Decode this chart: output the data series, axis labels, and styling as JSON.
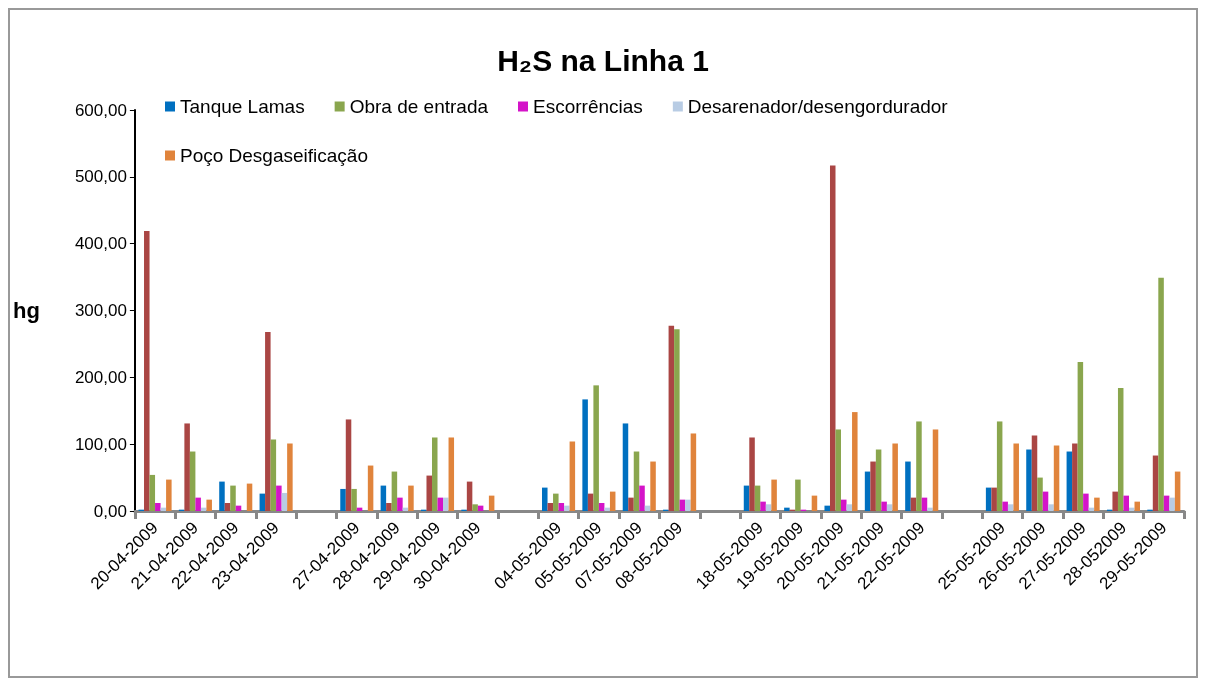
{
  "chart_data": {
    "type": "bar",
    "title": "H₂S na Linha 1",
    "ylabel": "hg",
    "categories": [
      "20-04-2009",
      "21-04-2009",
      "22-04-2009",
      "23-04-2009",
      null,
      "27-04-2009",
      "28-04-2009",
      "29-04-2009",
      "30-04-2009",
      null,
      "04-05-2009",
      "05-05-2009",
      "07-05-2009",
      "08-05-2009",
      null,
      "18-05-2009",
      "19-05-2009",
      "20-05-2009",
      "21-05-2009",
      "22-05-2009",
      null,
      "25-05-2009",
      "26-05-2009",
      "27-05-2009",
      "28-052009",
      "29-05-2009"
    ],
    "series": [
      {
        "name": "Tanque Lamas",
        "color": "#0070c0",
        "values": [
          2,
          2,
          44,
          26,
          null,
          33,
          38,
          2,
          2,
          null,
          35,
          167,
          131,
          2,
          null,
          38,
          5,
          8,
          59,
          74,
          null,
          35,
          92,
          89,
          2,
          2
        ]
      },
      {
        "color": "#aa4644",
        "values": [
          419,
          131,
          12,
          268,
          null,
          137,
          12,
          53,
          44,
          null,
          12,
          26,
          20,
          277,
          null,
          110,
          2,
          517,
          74,
          20,
          null,
          35,
          113,
          101,
          29,
          83
        ]
      },
      {
        "name": "Obra de entrada",
        "color": "#8aa64e",
        "values": [
          54,
          89,
          38,
          107,
          null,
          33,
          59,
          110,
          10,
          null,
          26,
          188,
          89,
          272,
          null,
          38,
          47,
          122,
          92,
          134,
          null,
          134,
          50,
          223,
          184,
          349
        ]
      },
      {
        "name": "Escorrências",
        "color": "#d414c8",
        "values": [
          12,
          20,
          8,
          38,
          null,
          5,
          20,
          20,
          8,
          null,
          12,
          12,
          38,
          17,
          null,
          14,
          2,
          17,
          14,
          20,
          null,
          14,
          29,
          26,
          23,
          23
        ]
      },
      {
        "name": "Desarenador/desengordurador",
        "color": "#b8cce4",
        "values": [
          5,
          5,
          null,
          27,
          null,
          null,
          5,
          20,
          null,
          null,
          8,
          5,
          8,
          17,
          null,
          10,
          null,
          10,
          10,
          5,
          null,
          10,
          10,
          5,
          5,
          20
        ]
      },
      {
        "name": "Poço Desgaseificação",
        "color": "#e0843c",
        "values": [
          47,
          17,
          41,
          101,
          null,
          68,
          38,
          110,
          23,
          null,
          104,
          29,
          74,
          116,
          null,
          47,
          23,
          148,
          101,
          122,
          null,
          101,
          98,
          20,
          14,
          59
        ]
      }
    ],
    "ylim": [
      0,
      600
    ],
    "yticks": [
      {
        "value": 0,
        "label": "0,00"
      },
      {
        "value": 100,
        "label": "100,00"
      },
      {
        "value": 200,
        "label": "200,00"
      },
      {
        "value": 300,
        "label": "300,00"
      },
      {
        "value": 400,
        "label": "400,00"
      },
      {
        "value": 500,
        "label": "500,00"
      },
      {
        "value": 600,
        "label": "600,00"
      }
    ],
    "grid": false,
    "legend": "top"
  }
}
